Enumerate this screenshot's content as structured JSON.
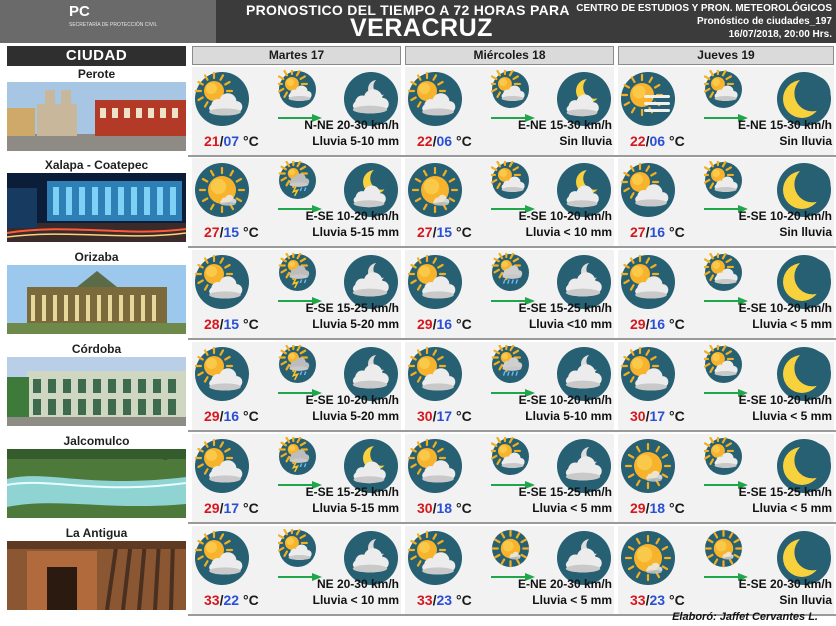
{
  "header": {
    "logo_text": "PC",
    "logo_subtext": "SECRETARÍA DE PROTECCIÓN CIVIL",
    "title_line1": "PRONOSTICO DEL TIEMPO A 72 HORAS PARA",
    "title_line2": "VERACRUZ",
    "info_line1": "CENTRO DE ESTUDIOS Y PRON. METEOROLÓGICOS",
    "info_line2": "Pronóstico de ciudades_197",
    "info_line3": "16/07/2018, 20:00 Hrs."
  },
  "columns": {
    "city_header": "CIUDAD",
    "days": [
      "Martes 17",
      "Miércoles 18",
      "Jueves 19"
    ]
  },
  "unit": "°C",
  "colors": {
    "icon_circle": "#275f73",
    "temp_max": "#d6181e",
    "temp_min": "#2a4fd6",
    "arrow": "#1fa64a",
    "header_bg": "#3b3b3b"
  },
  "cities": [
    {
      "name": "Perote",
      "image": "church-plaza-photo",
      "days": [
        {
          "day_icon": "partly-cloudy-icon",
          "small_icon": "partly-cloudy-icon",
          "night_icon": "cloudy-night-icon",
          "max": "21",
          "min": "07",
          "wind": "N-NE  20-30 km/h",
          "rain": "Lluvia  5-10 mm"
        },
        {
          "day_icon": "partly-cloudy-icon",
          "small_icon": "partly-cloudy-icon",
          "night_icon": "partly-cloudy-night-icon",
          "max": "22",
          "min": "06",
          "wind": "E-NE  15-30 km/h",
          "rain": "Sin lluvia"
        },
        {
          "day_icon": "sun-haze-icon",
          "small_icon": "partly-cloudy-icon",
          "night_icon": "moon-icon",
          "max": "22",
          "min": "06",
          "wind": "E-NE  15-30 km/h",
          "rain": "Sin lluvia"
        }
      ]
    },
    {
      "name": "Xalapa - Coatepec",
      "image": "night-plaza-photo",
      "days": [
        {
          "day_icon": "sunny-icon",
          "small_icon": "storm-icon",
          "night_icon": "partly-cloudy-night-icon",
          "max": "27",
          "min": "15",
          "wind": "E-SE  10-20 km/h",
          "rain": "Lluvia  5-15 mm"
        },
        {
          "day_icon": "sunny-icon",
          "small_icon": "partly-cloudy-icon",
          "night_icon": "partly-cloudy-night-icon",
          "max": "27",
          "min": "15",
          "wind": "E-SE  10-20 km/h",
          "rain": "Lluvia  < 10 mm"
        },
        {
          "day_icon": "partly-cloudy-icon",
          "small_icon": "partly-cloudy-icon",
          "night_icon": "moon-icon",
          "max": "27",
          "min": "16",
          "wind": "E-SE  10-20 km/h",
          "rain": "Sin lluvia"
        }
      ]
    },
    {
      "name": "Orizaba",
      "image": "palace-building-photo",
      "days": [
        {
          "day_icon": "partly-cloudy-icon",
          "small_icon": "storm-icon",
          "night_icon": "cloudy-night-icon",
          "max": "28",
          "min": "15",
          "wind": "E-SE  15-25 km/h",
          "rain": "Lluvia  5-20 mm"
        },
        {
          "day_icon": "partly-cloudy-icon",
          "small_icon": "rain-icon",
          "night_icon": "cloudy-night-icon",
          "max": "29",
          "min": "16",
          "wind": "E-SE  15-25 km/h",
          "rain": "Lluvia  <10 mm"
        },
        {
          "day_icon": "partly-cloudy-icon",
          "small_icon": "partly-cloudy-icon",
          "night_icon": "moon-icon",
          "max": "29",
          "min": "16",
          "wind": "E-SE  10-20 km/h",
          "rain": "Lluvia  < 5 mm"
        }
      ]
    },
    {
      "name": "Córdoba",
      "image": "colonial-building-photo",
      "days": [
        {
          "day_icon": "partly-cloudy-icon",
          "small_icon": "storm-icon",
          "night_icon": "cloudy-night-icon",
          "max": "29",
          "min": "16",
          "wind": "E-SE  10-20 km/h",
          "rain": "Lluvia  5-20 mm"
        },
        {
          "day_icon": "partly-cloudy-icon",
          "small_icon": "rain-icon",
          "night_icon": "cloudy-night-icon",
          "max": "30",
          "min": "17",
          "wind": "E-SE  10-20 km/h",
          "rain": "Lluvia  5-10 mm"
        },
        {
          "day_icon": "partly-cloudy-icon",
          "small_icon": "partly-cloudy-icon",
          "night_icon": "moon-icon",
          "max": "30",
          "min": "17",
          "wind": "E-SE  10-20 km/h",
          "rain": "Lluvia  < 5 mm"
        }
      ]
    },
    {
      "name": "Jalcomulco",
      "image": "river-photo",
      "days": [
        {
          "day_icon": "partly-cloudy-icon",
          "small_icon": "storm-icon",
          "night_icon": "partly-cloudy-night-icon",
          "max": "29",
          "min": "17",
          "wind": "E-SE  15-25 km/h",
          "rain": "Lluvia  5-15 mm"
        },
        {
          "day_icon": "partly-cloudy-icon",
          "small_icon": "partly-cloudy-icon",
          "night_icon": "cloudy-night-icon",
          "max": "30",
          "min": "18",
          "wind": "E-SE  15-25 km/h",
          "rain": "Lluvia  < 5 mm"
        },
        {
          "day_icon": "sunny-icon",
          "small_icon": "partly-cloudy-icon",
          "night_icon": "moon-icon",
          "max": "29",
          "min": "18",
          "wind": "E-SE  15-25 km/h",
          "rain": "Lluvia  < 5 mm"
        }
      ]
    },
    {
      "name": "La Antigua",
      "image": "ruins-photo",
      "days": [
        {
          "day_icon": "partly-cloudy-icon",
          "small_icon": "partly-cloudy-icon",
          "night_icon": "cloudy-night-icon",
          "max": "33",
          "min": "22",
          "wind": "NE  20-30 km/h",
          "rain": "Lluvia  < 10 mm"
        },
        {
          "day_icon": "partly-cloudy-icon",
          "small_icon": "sunny-icon",
          "night_icon": "cloudy-night-icon",
          "max": "33",
          "min": "23",
          "wind": "E-NE  20-30 km/h",
          "rain": "Lluvia  < 5 mm"
        },
        {
          "day_icon": "sunny-icon",
          "small_icon": "sunny-icon",
          "night_icon": "moon-icon",
          "max": "33",
          "min": "23",
          "wind": "E-SE  20-30 km/h",
          "rain": "Sin lluvia"
        }
      ]
    }
  ],
  "footer": "Elaboró: Jaffet Cervantes L."
}
